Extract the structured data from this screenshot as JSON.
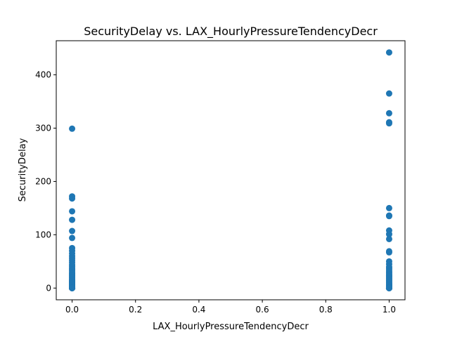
{
  "chart_data": {
    "type": "scatter",
    "title": "SecurityDelay vs. LAX_HourlyPressureTendencyDecr",
    "xlabel": "LAX_HourlyPressureTendencyDecr",
    "ylabel": "SecurityDelay",
    "xlim": [
      -0.05,
      1.05
    ],
    "ylim": [
      -22,
      464
    ],
    "xticks": [
      0.0,
      0.2,
      0.4,
      0.6,
      0.8,
      1.0
    ],
    "xtick_labels": [
      "0.0",
      "0.2",
      "0.4",
      "0.6",
      "0.8",
      "1.0"
    ],
    "yticks": [
      0,
      100,
      200,
      300,
      400
    ],
    "ytick_labels": [
      "0",
      "100",
      "200",
      "300",
      "400"
    ],
    "grid": false,
    "marker_color": "#1f77b4",
    "series": [
      {
        "x": [
          0,
          0,
          0,
          0,
          0,
          0,
          0,
          0,
          0,
          0,
          0,
          0,
          0,
          0,
          0,
          0,
          0,
          0,
          0,
          0,
          0,
          0,
          0,
          0,
          0,
          0,
          0,
          0,
          0,
          0,
          0,
          0,
          0,
          0,
          0,
          0,
          0,
          0,
          0,
          0,
          0,
          0,
          0,
          0,
          0,
          0,
          0,
          0,
          0,
          0,
          0,
          0,
          0,
          0,
          1,
          1,
          1,
          1,
          1,
          1,
          1,
          1,
          1,
          1,
          1,
          1,
          1,
          1,
          1,
          1,
          1,
          1,
          1,
          1,
          1,
          1,
          1,
          1,
          1,
          1,
          1,
          1,
          1,
          1,
          1,
          1,
          1,
          1,
          1,
          1,
          1,
          1,
          1,
          1,
          1,
          1,
          1,
          1,
          1,
          1,
          1,
          1
        ],
        "y": [
          299,
          172,
          168,
          144,
          128,
          107,
          94,
          75,
          70,
          65,
          60,
          56,
          52,
          48,
          44,
          41,
          38,
          35,
          32,
          29,
          27,
          25,
          23,
          21,
          19,
          17,
          15,
          14,
          13,
          12,
          11,
          10,
          9,
          8,
          7,
          6,
          5,
          4,
          3,
          2,
          1,
          0,
          0,
          0,
          0,
          0,
          0,
          0,
          0,
          0,
          0,
          0,
          0,
          0,
          442,
          365,
          328,
          311,
          309,
          150,
          136,
          135,
          108,
          101,
          92,
          69,
          67,
          50,
          45,
          40,
          37,
          34,
          31,
          29,
          26,
          24,
          22,
          20,
          18,
          16,
          14,
          12,
          10,
          8,
          7,
          6,
          5,
          4,
          3,
          2,
          1,
          0,
          0,
          0,
          0,
          0,
          0,
          0,
          0,
          0,
          0,
          0
        ]
      }
    ]
  }
}
